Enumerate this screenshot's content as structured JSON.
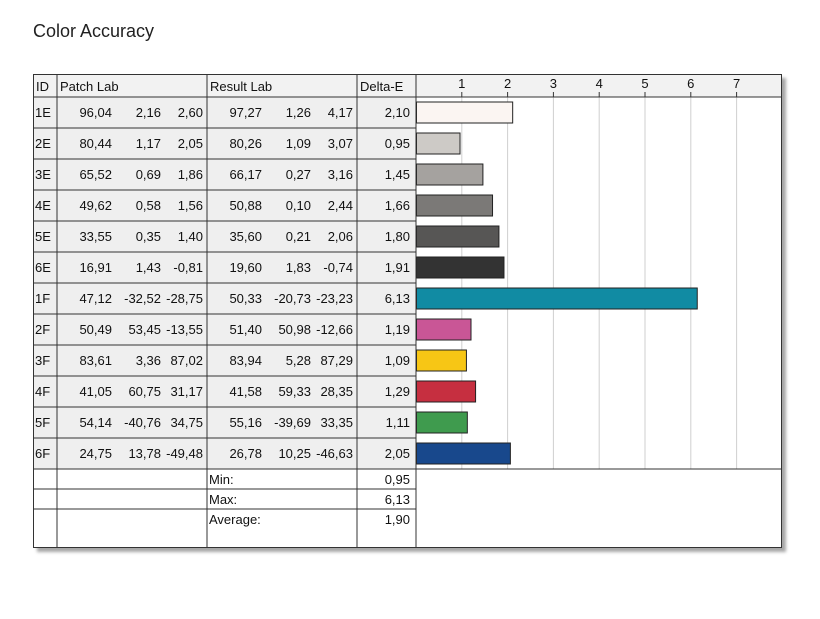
{
  "title": "Color Accuracy",
  "headers": {
    "id": "ID",
    "patch": "Patch Lab",
    "result": "Result Lab",
    "delta": "Delta-E"
  },
  "rows": [
    {
      "id": "1E",
      "patch": [
        "96,04",
        "2,16",
        "2,60"
      ],
      "result": [
        "97,27",
        "1,26",
        "4,17"
      ],
      "delta": "2,10",
      "color": "#fbf5f2"
    },
    {
      "id": "2E",
      "patch": [
        "80,44",
        "1,17",
        "2,05"
      ],
      "result": [
        "80,26",
        "1,09",
        "3,07"
      ],
      "delta": "0,95",
      "color": "#cdcac6"
    },
    {
      "id": "3E",
      "patch": [
        "65,52",
        "0,69",
        "1,86"
      ],
      "result": [
        "66,17",
        "0,27",
        "3,16"
      ],
      "delta": "1,45",
      "color": "#a5a29f"
    },
    {
      "id": "4E",
      "patch": [
        "49,62",
        "0,58",
        "1,56"
      ],
      "result": [
        "50,88",
        "0,10",
        "2,44"
      ],
      "delta": "1,66",
      "color": "#7b7977"
    },
    {
      "id": "5E",
      "patch": [
        "33,55",
        "0,35",
        "1,40"
      ],
      "result": [
        "35,60",
        "0,21",
        "2,06"
      ],
      "delta": "1,80",
      "color": "#575655"
    },
    {
      "id": "6E",
      "patch": [
        "16,91",
        "1,43",
        "-0,81"
      ],
      "result": [
        "19,60",
        "1,83",
        "-0,74"
      ],
      "delta": "1,91",
      "color": "#333333"
    },
    {
      "id": "1F",
      "patch": [
        "47,12",
        "-32,52",
        "-28,75"
      ],
      "result": [
        "50,33",
        "-20,73",
        "-23,23"
      ],
      "delta": "6,13",
      "color": "#118ba3"
    },
    {
      "id": "2F",
      "patch": [
        "50,49",
        "53,45",
        "-13,55"
      ],
      "result": [
        "51,40",
        "50,98",
        "-12,66"
      ],
      "delta": "1,19",
      "color": "#c95696"
    },
    {
      "id": "3F",
      "patch": [
        "83,61",
        "3,36",
        "87,02"
      ],
      "result": [
        "83,94",
        "5,28",
        "87,29"
      ],
      "delta": "1,09",
      "color": "#f7c615"
    },
    {
      "id": "4F",
      "patch": [
        "41,05",
        "60,75",
        "31,17"
      ],
      "result": [
        "41,58",
        "59,33",
        "28,35"
      ],
      "delta": "1,29",
      "color": "#c62f40"
    },
    {
      "id": "5F",
      "patch": [
        "54,14",
        "-40,76",
        "34,75"
      ],
      "result": [
        "55,16",
        "-39,69",
        "33,35"
      ],
      "delta": "1,11",
      "color": "#3f9b4e"
    },
    {
      "id": "6F",
      "patch": [
        "24,75",
        "13,78",
        "-49,48"
      ],
      "result": [
        "26,78",
        "10,25",
        "-46,63"
      ],
      "delta": "2,05",
      "color": "#18488c"
    }
  ],
  "summary": [
    {
      "label": "Min:",
      "value": "0,95"
    },
    {
      "label": "Max:",
      "value": "6,13"
    },
    {
      "label": "Average:",
      "value": "1,90"
    }
  ],
  "chart_data": {
    "type": "bar",
    "orientation": "horizontal",
    "title": "Color Accuracy",
    "categories": [
      "1E",
      "2E",
      "3E",
      "4E",
      "5E",
      "6E",
      "1F",
      "2F",
      "3F",
      "4F",
      "5F",
      "6F"
    ],
    "values": [
      2.1,
      0.95,
      1.45,
      1.66,
      1.8,
      1.91,
      6.13,
      1.19,
      1.09,
      1.29,
      1.11,
      2.05
    ],
    "xlabel": "Delta-E",
    "xlim": [
      0,
      8
    ],
    "ticks": [
      1,
      2,
      3,
      4,
      5,
      6,
      7
    ],
    "grid": true,
    "bar_colors": [
      "#fbf5f2",
      "#cdcac6",
      "#a5a29f",
      "#7b7977",
      "#575655",
      "#333333",
      "#118ba3",
      "#c95696",
      "#f7c615",
      "#c62f40",
      "#3f9b4e",
      "#18488c"
    ]
  }
}
